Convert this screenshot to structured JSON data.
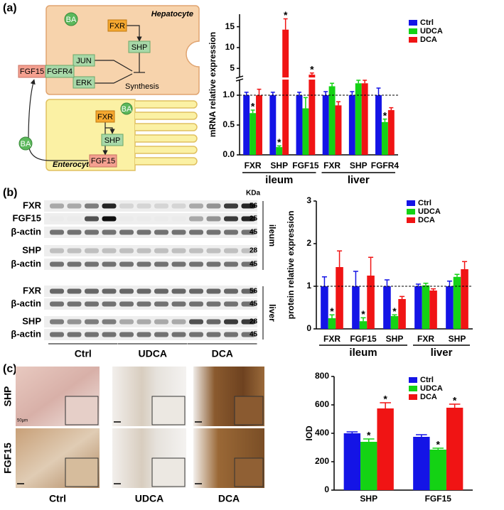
{
  "panel_labels": [
    "(a)",
    "(b)",
    "(c)"
  ],
  "diagram": {
    "hepatocyte": "Hepatocyte",
    "enterocyte": "Enterocyte",
    "synthesis": "Synthesis",
    "nodes": [
      "BA",
      "FXR",
      "SHP",
      "JUN",
      "ERK",
      "FGF15",
      "FGFR4",
      "FXR",
      "SHP",
      "FGF15",
      "BA",
      "BA"
    ]
  },
  "blot": {
    "unit": "KDa",
    "rows": [
      {
        "label": "FXR",
        "size": 56
      },
      {
        "label": "FGF15",
        "size": 25
      },
      {
        "label": "β-actin",
        "size": 45
      },
      {
        "label": "SHP",
        "size": 28
      },
      {
        "label": "β-actin",
        "size": 45
      },
      {
        "label": "FXR",
        "size": 56
      },
      {
        "label": "β-actin",
        "size": 45
      },
      {
        "label": "SHP",
        "size": 28
      },
      {
        "label": "β-actin",
        "size": 45
      }
    ],
    "tissues": [
      "ileum",
      "liver"
    ],
    "groups": [
      "Ctrl",
      "UDCA",
      "DCA"
    ]
  },
  "histology": {
    "rows": [
      "SHP",
      "FGF15"
    ],
    "columns": [
      "Ctrl",
      "UDCA",
      "DCA"
    ],
    "scale_bar": "50μm"
  },
  "chart_data": [
    {
      "type": "bar",
      "ylabel": "mRNA relative expression",
      "groups": [
        {
          "name": "ileum",
          "categories": [
            "FXR",
            "SHP",
            "FGF15"
          ]
        },
        {
          "name": "liver",
          "categories": [
            "FXR",
            "SHP",
            "FGFR4"
          ]
        }
      ],
      "series": [
        {
          "name": "Ctrl",
          "color": "#1414e6",
          "values": [
            1,
            1,
            1,
            1,
            1,
            1
          ],
          "errors": [
            0.05,
            0.05,
            0.05,
            0.06,
            0.06,
            0.12
          ],
          "significant": [
            false,
            false,
            false,
            false,
            false,
            false
          ]
        },
        {
          "name": "UDCA",
          "color": "#14d214",
          "values": [
            0.7,
            0.13,
            0.78,
            1.15,
            1.2,
            0.55
          ],
          "errors": [
            0.05,
            0.02,
            0.18,
            0.05,
            0.05,
            0.05
          ],
          "significant": [
            true,
            true,
            false,
            false,
            false,
            true
          ]
        },
        {
          "name": "DCA",
          "color": "#f01414",
          "values": [
            1,
            14.3,
            3.5,
            0.83,
            1.2,
            0.75
          ],
          "errors": [
            0.1,
            2.6,
            0.4,
            0.06,
            0.05,
            0.04
          ],
          "significant": [
            false,
            true,
            true,
            false,
            false,
            false
          ]
        }
      ],
      "ylim": [
        0,
        18
      ],
      "axis_break": [
        1.25,
        3
      ],
      "yticks": [
        {
          "value": 0,
          "label": "0.0"
        },
        {
          "value": 0.5,
          "label": "0.5"
        },
        {
          "value": 1,
          "label": "1.0"
        },
        5,
        10,
        15
      ],
      "reference_line": 1,
      "significance_label": "*",
      "legend": "upper right"
    },
    {
      "type": "bar",
      "ylabel": "protein relative expression",
      "groups": [
        {
          "name": "ileum",
          "categories": [
            "FXR",
            "FGF15",
            "SHP"
          ]
        },
        {
          "name": "liver",
          "categories": [
            "FXR",
            "SHP"
          ]
        }
      ],
      "series": [
        {
          "name": "Ctrl",
          "color": "#1414e6",
          "values": [
            1,
            1,
            1,
            1,
            1
          ],
          "errors": [
            0.22,
            0.35,
            0.15,
            0.05,
            0.12
          ],
          "significant": [
            false,
            false,
            false,
            false,
            false
          ]
        },
        {
          "name": "UDCA",
          "color": "#14d214",
          "values": [
            0.25,
            0.18,
            0.3,
            1.02,
            1.22
          ],
          "errors": [
            0.08,
            0.08,
            0.03,
            0.05,
            0.06
          ],
          "significant": [
            true,
            true,
            true,
            false,
            false
          ]
        },
        {
          "name": "DCA",
          "color": "#f01414",
          "values": [
            1.45,
            1.25,
            0.7,
            0.9,
            1.4
          ],
          "errors": [
            0.38,
            0.43,
            0.06,
            0.04,
            0.18
          ],
          "significant": [
            false,
            false,
            false,
            false,
            false
          ]
        }
      ],
      "ylim": [
        0,
        3
      ],
      "yticks": [
        0,
        1,
        2,
        3
      ],
      "reference_line": 1,
      "significance_label": "*",
      "legend": "upper right"
    },
    {
      "type": "bar",
      "ylabel": "IOD",
      "categories": [
        "SHP",
        "FGF15"
      ],
      "series": [
        {
          "name": "Ctrl",
          "color": "#1414e6",
          "values": [
            400,
            375
          ],
          "errors": [
            10,
            15
          ],
          "significant": [
            false,
            false
          ]
        },
        {
          "name": "UDCA",
          "color": "#14d214",
          "values": [
            340,
            285
          ],
          "errors": [
            20,
            10
          ],
          "significant": [
            true,
            true
          ]
        },
        {
          "name": "DCA",
          "color": "#f01414",
          "values": [
            575,
            580
          ],
          "errors": [
            40,
            25
          ],
          "significant": [
            true,
            true
          ]
        }
      ],
      "ylim": [
        0,
        800
      ],
      "yticks": [
        0,
        200,
        400,
        600,
        800
      ],
      "significance_label": "*",
      "legend": "upper right"
    }
  ]
}
